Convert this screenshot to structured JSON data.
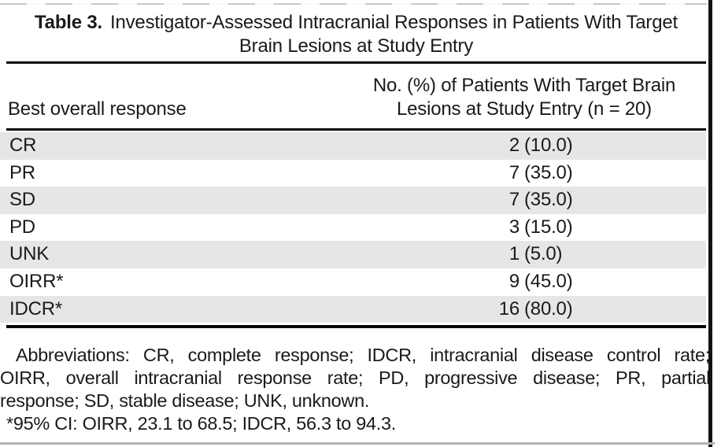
{
  "page": {
    "background": "#ffffff",
    "text_color": "#1a1a1a",
    "shaded_row_color": "#e6e6e9",
    "rule_color": "#060606",
    "edge_line_color": "#131313",
    "bottom_scan_line_color": "#b2b2b7"
  },
  "table": {
    "title": {
      "label": "Table 3.",
      "line1": "Investigator-Assessed Intracranial Responses in Patients With Target",
      "line2": "Brain Lesions at Study Entry"
    },
    "header": {
      "col1": "Best overall response",
      "col2_line1": "No. (%) of Patients With Target Brain",
      "col2_line2": "Lesions at Study Entry (n = 20)"
    },
    "rows": [
      {
        "response": "CR",
        "count": "2",
        "pct": "(10.0)"
      },
      {
        "response": "PR",
        "count": "7",
        "pct": "(35.0)"
      },
      {
        "response": "SD",
        "count": "7",
        "pct": "(35.0)"
      },
      {
        "response": "PD",
        "count": "3",
        "pct": "(15.0)"
      },
      {
        "response": "UNK",
        "count": "1",
        "pct": "(5.0)"
      },
      {
        "response": "OIRR*",
        "count": "9",
        "pct": "(45.0)"
      },
      {
        "response": "IDCR*",
        "count": "16",
        "pct": "(80.0)"
      }
    ],
    "footnotes": {
      "line1": "Abbreviations: CR, complete response; IDCR, intracranial disease control rate;",
      "line2": "OIRR, overall intracranial response rate; PD, progressive disease; PR, partial",
      "line3": "response; SD, stable disease; UNK, unknown.",
      "line4": "*95% CI: OIRR, 23.1 to 68.5; IDCR, 56.3 to 94.3."
    }
  }
}
